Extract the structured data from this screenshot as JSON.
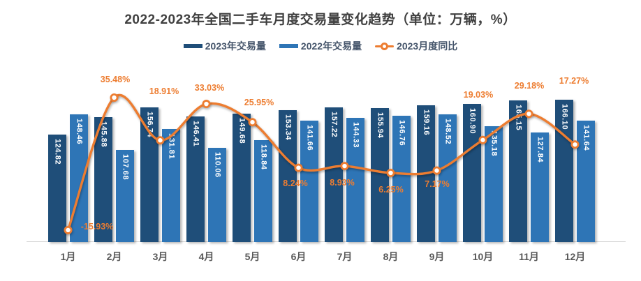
{
  "title": "2022-2023年全国二手车月度交易量变化趋势（单位：万辆，%）",
  "colors": {
    "bar_2023": "#1F4E79",
    "bar_2022": "#2E75B6",
    "yoy_line": "#ED7D31",
    "title_text": "#404040",
    "legend_text": "#44546A",
    "axis_labels": "#595959",
    "axis_line": "#D9D9D9",
    "bar_value_text": "#FFFFFF"
  },
  "chart_data": {
    "type": "bar",
    "subtype": "clustered-bars-with-smooth-line-overlay",
    "title": "2022-2023年全国二手车月度交易量变化趋势（单位：万辆，%）",
    "categories": [
      "1月",
      "2月",
      "3月",
      "4月",
      "5月",
      "6月",
      "7月",
      "8月",
      "9月",
      "10月",
      "11月",
      "12月"
    ],
    "series": [
      {
        "name": "2023年交易量",
        "type": "bar",
        "color": "#1F4E79",
        "unit": "万辆",
        "values": [
          124.82,
          145.88,
          156.74,
          146.41,
          149.68,
          153.34,
          157.22,
          155.94,
          159.16,
          160.9,
          165.15,
          166.1
        ]
      },
      {
        "name": "2022年交易量",
        "type": "bar",
        "color": "#2E75B6",
        "unit": "万辆",
        "values": [
          148.46,
          107.68,
          131.81,
          110.06,
          118.84,
          141.66,
          144.33,
          146.76,
          148.52,
          135.18,
          127.84,
          141.64
        ]
      },
      {
        "name": "2023月度同比",
        "type": "line",
        "color": "#ED7D31",
        "unit": "%",
        "marker": "hollow-circle",
        "smooth": true,
        "values": [
          -15.93,
          35.48,
          18.91,
          33.03,
          25.95,
          8.24,
          8.93,
          6.25,
          7.17,
          19.03,
          29.18,
          17.27
        ]
      }
    ],
    "bar_axis": {
      "min": 0,
      "max": 175,
      "visible": false
    },
    "line_axis": {
      "unit": "%",
      "visible": false
    },
    "grid": false,
    "legend_position": "top",
    "value_labels": "inside-bars-vertical; line labels near points"
  }
}
